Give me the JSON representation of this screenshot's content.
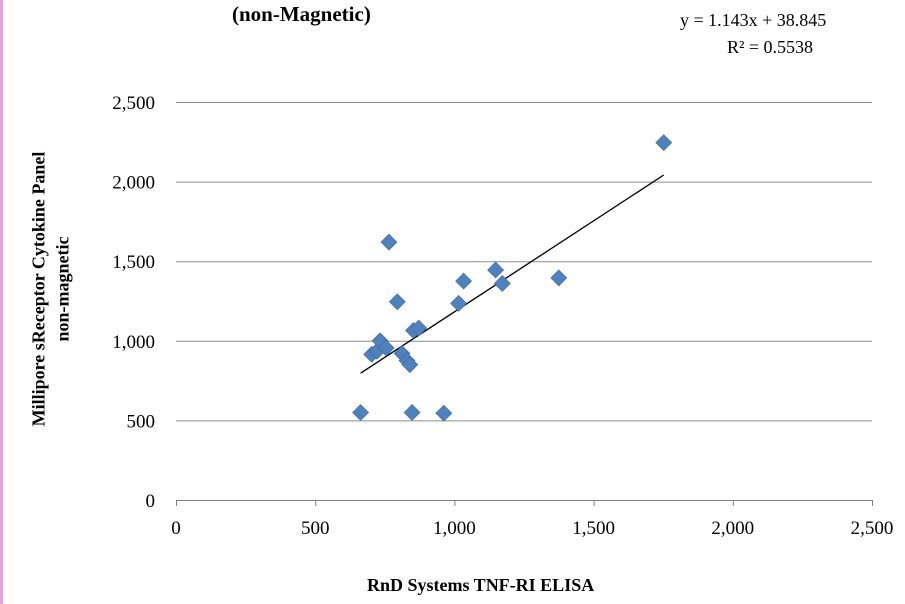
{
  "chart_data": {
    "type": "scatter",
    "title": "(non-Magnetic)",
    "xlabel": "RnD Systems TNF-RI ELISA",
    "ylabel_line1": "Millipore sReceptor Cytokine Panel",
    "ylabel_line2": "non-magnetic",
    "xlim": [
      0,
      2500
    ],
    "ylim": [
      0,
      2500
    ],
    "x_ticks": [
      0,
      500,
      1000,
      1500,
      2000,
      2500
    ],
    "y_ticks": [
      0,
      500,
      1000,
      1500,
      2000,
      2500
    ],
    "x_tick_labels": [
      "0",
      "500",
      "1,000",
      "1,500",
      "2,000",
      "2,500"
    ],
    "y_tick_labels": [
      "0",
      "500",
      "1,000",
      "1,500",
      "2,000",
      "2,500"
    ],
    "grid": "horizontal",
    "series": [
      {
        "marker": "diamond",
        "color": "#4f81bd",
        "x": [
          663,
          703,
          722,
          733,
          755,
          765,
          795,
          812,
          830,
          840,
          848,
          853,
          872,
          962,
          1015,
          1033,
          1148,
          1172,
          1375,
          1752
        ],
        "y": [
          550,
          915,
          935,
          1000,
          955,
          1620,
          1245,
          920,
          875,
          850,
          550,
          1065,
          1080,
          545,
          1235,
          1375,
          1445,
          1360,
          1395,
          2245
        ]
      }
    ],
    "trendline": {
      "type": "linear",
      "slope": 1.143,
      "intercept": 38.845,
      "x_range": [
        663,
        1752
      ],
      "equation": "y = 1.143x + 38.845",
      "r_squared": "R² = 0.5538"
    }
  }
}
